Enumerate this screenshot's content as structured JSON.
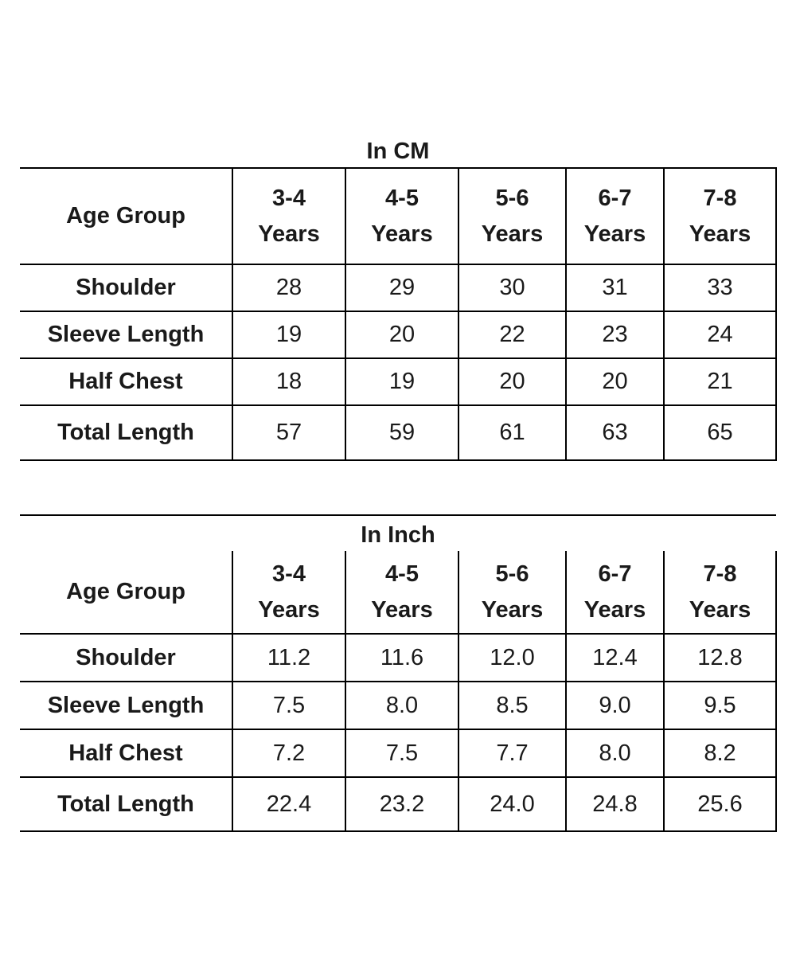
{
  "tables": [
    {
      "caption": "In CM",
      "row_header": "Age Group",
      "columns": [
        {
          "range": "3-4",
          "unit": "Years"
        },
        {
          "range": "4-5",
          "unit": "Years"
        },
        {
          "range": "5-6",
          "unit": "Years"
        },
        {
          "range": "6-7",
          "unit": "Years"
        },
        {
          "range": "7-8",
          "unit": "Years"
        }
      ],
      "rows": [
        {
          "label": "Shoulder",
          "values": [
            "28",
            "29",
            "30",
            "31",
            "33"
          ]
        },
        {
          "label": "Sleeve Length",
          "values": [
            "19",
            "20",
            "22",
            "23",
            "24"
          ]
        },
        {
          "label": "Half Chest",
          "values": [
            "18",
            "19",
            "20",
            "20",
            "21"
          ]
        },
        {
          "label": "Total Length",
          "values": [
            "57",
            "59",
            "61",
            "63",
            "65"
          ]
        }
      ]
    },
    {
      "caption": "In Inch",
      "row_header": "Age Group",
      "columns": [
        {
          "range": "3-4",
          "unit": "Years"
        },
        {
          "range": "4-5",
          "unit": "Years"
        },
        {
          "range": "5-6",
          "unit": "Years"
        },
        {
          "range": "6-7",
          "unit": "Years"
        },
        {
          "range": "7-8",
          "unit": "Years"
        }
      ],
      "rows": [
        {
          "label": "Shoulder",
          "values": [
            "11.2",
            "11.6",
            "12.0",
            "12.4",
            "12.8"
          ]
        },
        {
          "label": "Sleeve Length",
          "values": [
            "7.5",
            "8.0",
            "8.5",
            "9.0",
            "9.5"
          ]
        },
        {
          "label": "Half Chest",
          "values": [
            "7.2",
            "7.5",
            "7.7",
            "8.0",
            "8.2"
          ]
        },
        {
          "label": "Total Length",
          "values": [
            "22.4",
            "23.2",
            "24.0",
            "24.8",
            "25.6"
          ]
        }
      ]
    }
  ]
}
